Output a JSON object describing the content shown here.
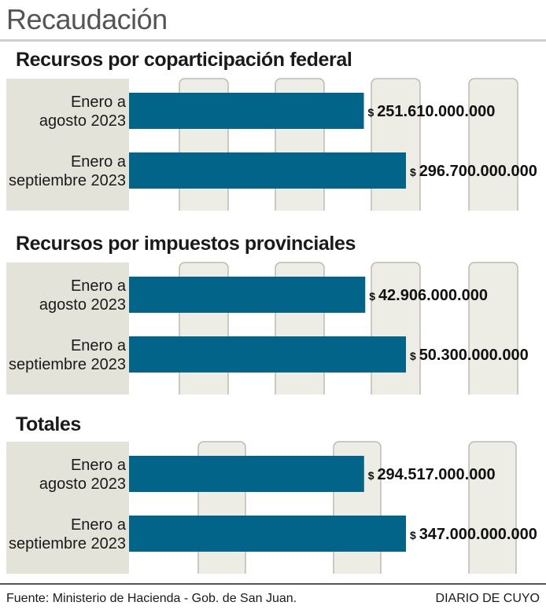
{
  "title": "Recaudación",
  "colors": {
    "bar": "#03648a",
    "panel": "#e4e3d9",
    "column": "#edede6",
    "column_stroke": "#bdbbb0"
  },
  "chart_data": [
    {
      "type": "bar",
      "orientation": "horizontal",
      "title": "Recursos por coparticipación federal",
      "categories": [
        [
          "Enero a",
          "agosto 2023"
        ],
        [
          "Enero a",
          "septiembre 2023"
        ]
      ],
      "values": [
        251610000000,
        296700000000
      ],
      "value_labels": [
        "251.610.000.000",
        "296.700.000.000"
      ],
      "value_prefix": "$",
      "scale_max": 296700000000
    },
    {
      "type": "bar",
      "orientation": "horizontal",
      "title": "Recursos por impuestos provinciales",
      "categories": [
        [
          "Enero a",
          "agosto 2023"
        ],
        [
          "Enero a",
          "septiembre 2023"
        ]
      ],
      "values": [
        42906000000,
        50300000000
      ],
      "value_labels": [
        "42.906.000.000",
        "50.300.000.000"
      ],
      "value_prefix": "$",
      "scale_max": 50300000000
    },
    {
      "type": "bar",
      "orientation": "horizontal",
      "title": "Totales",
      "categories": [
        [
          "Enero a",
          "agosto 2023"
        ],
        [
          "Enero a",
          "septiembre 2023"
        ]
      ],
      "values": [
        294517000000,
        347000000000
      ],
      "value_labels": [
        "294.517.000.000",
        "347.000.000.000"
      ],
      "value_prefix": "$",
      "scale_max": 347000000000
    }
  ],
  "footer": {
    "source": "Fuente: Ministerio de Hacienda - Gob. de San Juan.",
    "brand": "DIARIO DE CUYO"
  }
}
